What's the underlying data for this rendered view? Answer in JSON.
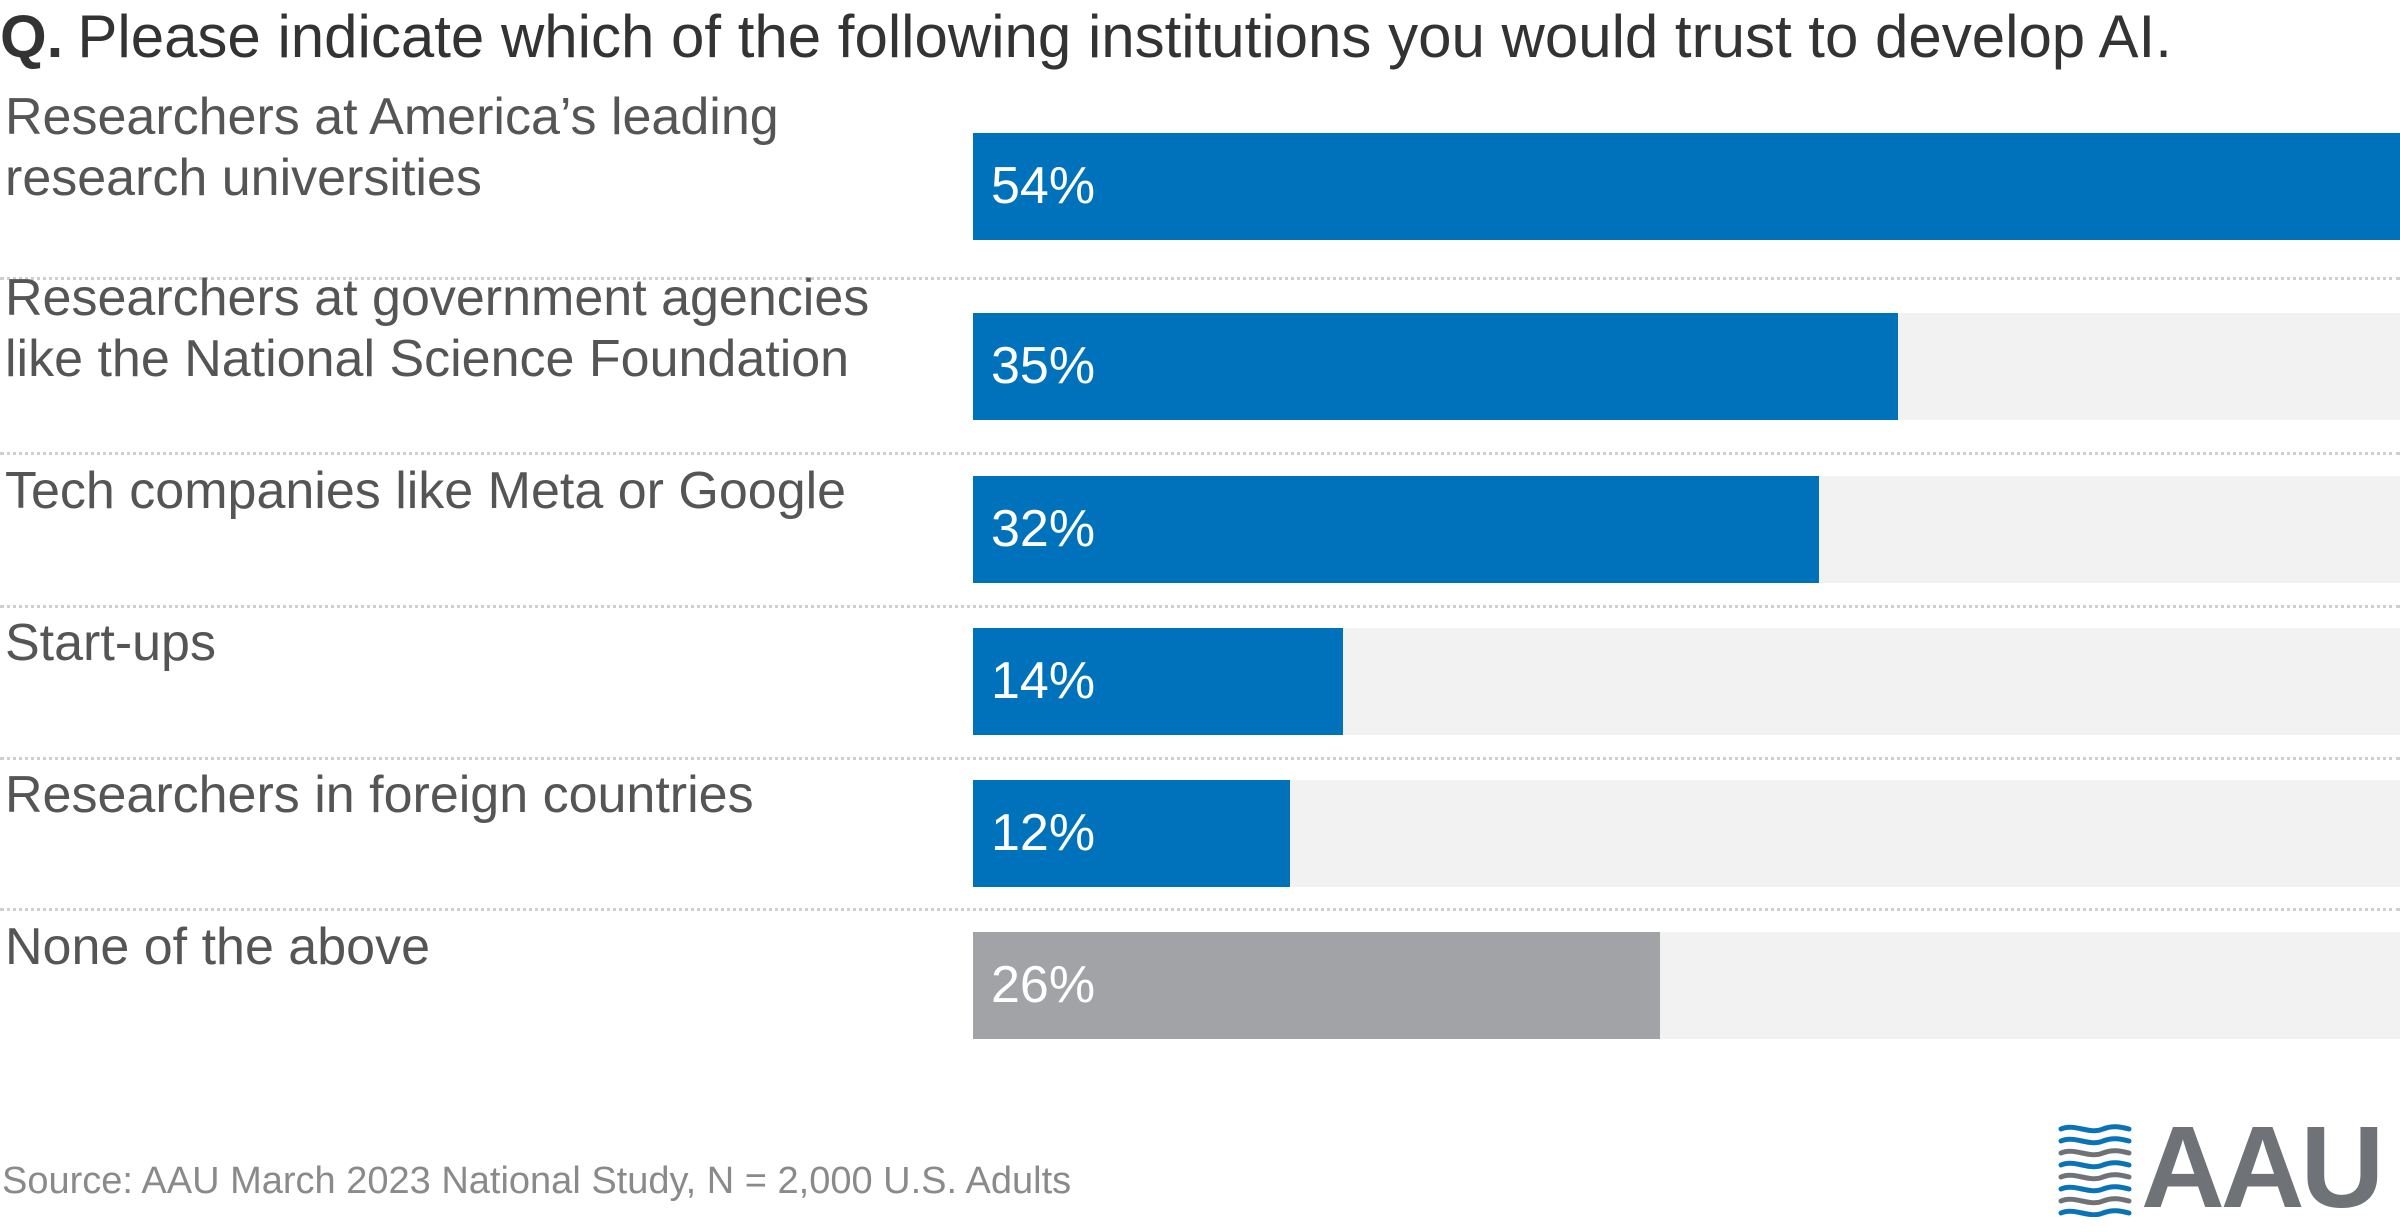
{
  "question": {
    "prefix": "Q.",
    "text": "Please indicate which of the following institutions you would trust to develop AI."
  },
  "colors": {
    "primary_bar": "#0072bb",
    "other_bar": "#a1a3a6",
    "track": "#f2f2f2"
  },
  "chart_data": {
    "type": "bar",
    "orientation": "horizontal",
    "title": "Please indicate which of the following institutions you would trust to develop AI.",
    "categories": [
      "Researchers at America’s leading research universities",
      "Researchers at government agencies like the National Science Foundation",
      "Tech companies like Meta or Google",
      "Start-ups",
      "Researchers in foreign countries",
      "None of the above"
    ],
    "values": [
      54,
      35,
      32,
      14,
      12,
      26
    ],
    "value_labels": [
      "54%",
      "35%",
      "32%",
      "14%",
      "12%",
      "26%"
    ],
    "xlim": [
      0,
      54
    ],
    "grid": false,
    "legend": "none"
  },
  "source": "Source: AAU March 2023 National Study, N = 2,000 U.S. Adults",
  "logo": {
    "text": "AAU"
  }
}
